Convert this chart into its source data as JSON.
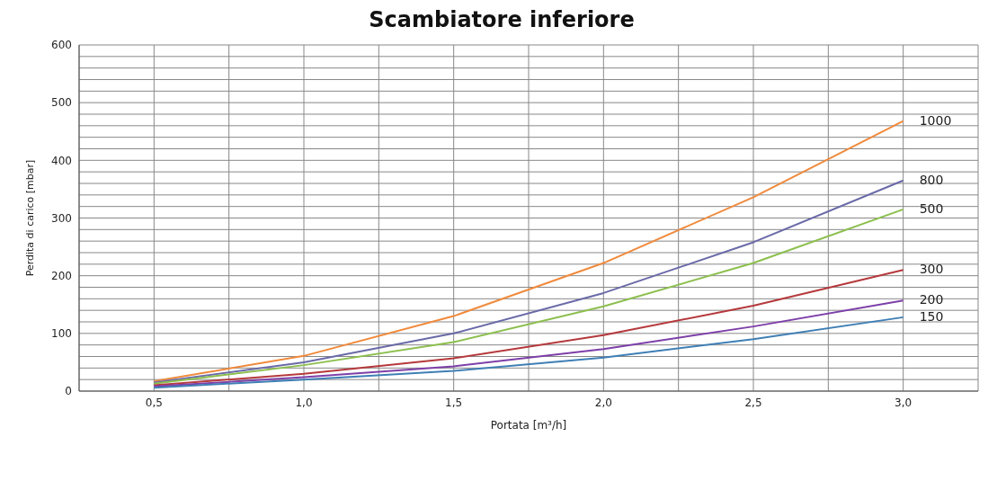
{
  "chart_data": {
    "type": "line",
    "title": "Scambiatore inferiore",
    "xlabel": "Portata [m³/h]",
    "ylabel": "Perdita di carico [mbar]",
    "x": [
      0.5,
      1.0,
      1.5,
      2.0,
      2.5,
      3.0
    ],
    "series": [
      {
        "name": "1000",
        "color": "#f08a3c",
        "values": [
          17,
          61,
          130,
          222,
          336,
          468
        ]
      },
      {
        "name": "800",
        "color": "#6a6aa8",
        "values": [
          15,
          50,
          100,
          170,
          258,
          365
        ]
      },
      {
        "name": "500",
        "color": "#8cbf4e",
        "values": [
          13,
          45,
          85,
          147,
          222,
          315
        ]
      },
      {
        "name": "300",
        "color": "#b5393c",
        "values": [
          10,
          30,
          57,
          97,
          148,
          210
        ]
      },
      {
        "name": "200",
        "color": "#7d3fa8",
        "values": [
          8,
          24,
          43,
          73,
          112,
          157
        ]
      },
      {
        "name": "150",
        "color": "#3f7fb5",
        "values": [
          6,
          20,
          35,
          58,
          90,
          128
        ]
      }
    ],
    "xlim": [
      0.25,
      3.25
    ],
    "xticks": [
      {
        "value": 0.25,
        "label": null
      },
      {
        "value": 0.5,
        "label": "0,5"
      },
      {
        "value": 0.75,
        "label": null
      },
      {
        "value": 1.0,
        "label": "1,0"
      },
      {
        "value": 1.25,
        "label": null
      },
      {
        "value": 1.5,
        "label": "1,5"
      },
      {
        "value": 1.75,
        "label": null
      },
      {
        "value": 2.0,
        "label": "2,0"
      },
      {
        "value": 2.25,
        "label": null
      },
      {
        "value": 2.5,
        "label": "2,5"
      },
      {
        "value": 2.75,
        "label": null
      },
      {
        "value": 3.0,
        "label": "3,0"
      },
      {
        "value": 3.25,
        "label": null
      }
    ],
    "ylim": [
      0,
      600
    ],
    "yticks": [
      0,
      {
        "value": 20,
        "label": null
      },
      {
        "value": 40,
        "label": null
      },
      {
        "value": 60,
        "label": null
      },
      {
        "value": 80,
        "label": null
      },
      100,
      {
        "value": 120,
        "label": null
      },
      {
        "value": 140,
        "label": null
      },
      {
        "value": 160,
        "label": null
      },
      {
        "value": 180,
        "label": null
      },
      200,
      {
        "value": 220,
        "label": null
      },
      {
        "value": 240,
        "label": null
      },
      {
        "value": 260,
        "label": null
      },
      {
        "value": 280,
        "label": null
      },
      300,
      {
        "value": 320,
        "label": null
      },
      {
        "value": 340,
        "label": null
      },
      {
        "value": 360,
        "label": null
      },
      {
        "value": 380,
        "label": null
      },
      400,
      {
        "value": 420,
        "label": null
      },
      {
        "value": 440,
        "label": null
      },
      {
        "value": 460,
        "label": null
      },
      {
        "value": 480,
        "label": null
      },
      500,
      {
        "value": 520,
        "label": null
      },
      {
        "value": 540,
        "label": null
      },
      {
        "value": 560,
        "label": null
      },
      {
        "value": 580,
        "label": null
      },
      600
    ],
    "grid": true,
    "marker": "none",
    "line_style": "solid"
  }
}
